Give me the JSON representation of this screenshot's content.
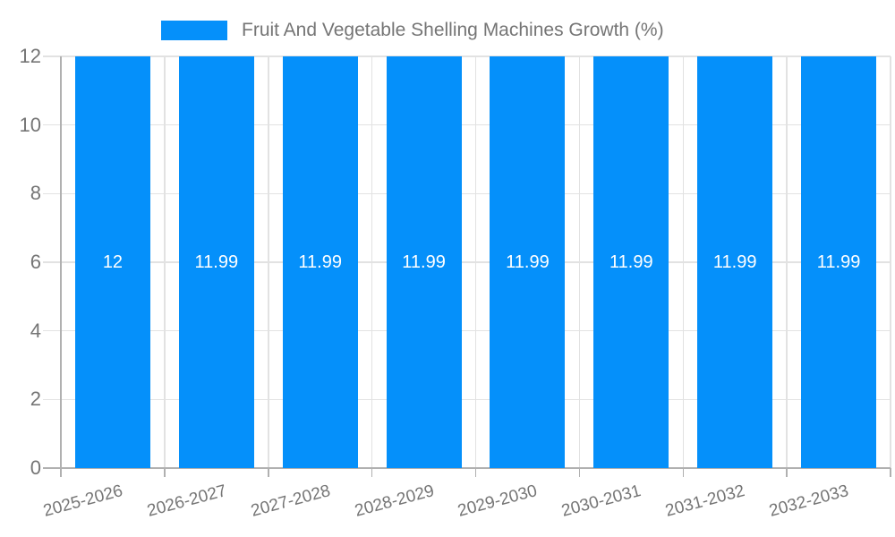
{
  "chart_data": {
    "type": "bar",
    "title": "Fruit And Vegetable Shelling Machines Growth (%)",
    "categories": [
      "2025-2026",
      "2026-2027",
      "2027-2028",
      "2028-2029",
      "2029-2030",
      "2030-2031",
      "2031-2032",
      "2032-2033"
    ],
    "values": [
      12,
      11.99,
      11.99,
      11.99,
      11.99,
      11.99,
      11.99,
      11.99
    ],
    "bar_labels": [
      "12",
      "11.99",
      "11.99",
      "11.99",
      "11.99",
      "11.99",
      "11.99",
      "11.99"
    ],
    "xlabel": "",
    "ylabel": "",
    "ylim": [
      0,
      12
    ],
    "yticks": [
      0,
      2,
      4,
      6,
      8,
      10,
      12
    ],
    "grid": true,
    "legend_position": "top",
    "x_label_rotation_deg": -15,
    "colors": {
      "bar": "#0590fa",
      "bar_label": "#ffffff",
      "axis_line": "#b0b0b0",
      "grid_line": "#e2e2e2",
      "text": "#757575",
      "background": "#ffffff"
    }
  }
}
